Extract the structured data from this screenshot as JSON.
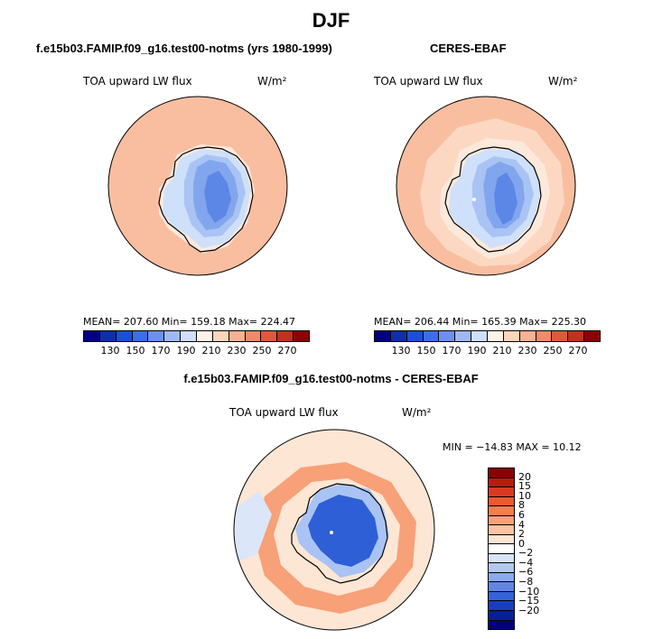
{
  "page": {
    "title": "DJF"
  },
  "panels": [
    {
      "title": "f.e15b03.FAMIP.f09_g16.test00-notms (yrs 1980-1999)",
      "variable": "TOA upward LW flux",
      "units": "W/m²",
      "stats": "MEAN= 207.60   Min= 159.18   Max= 224.47",
      "colorbar": {
        "ticks": [
          "130",
          "150",
          "170",
          "190",
          "210",
          "230",
          "250",
          "270"
        ],
        "colors": [
          "#00007f",
          "#0d2fa8",
          "#1a4fd8",
          "#3c6ee8",
          "#6d8ff0",
          "#9fb8f5",
          "#cfdefa",
          "#fff3e6",
          "#fdd4bc",
          "#f9b094",
          "#f08a68",
          "#dd5a3c",
          "#c2301e",
          "#8b0000"
        ]
      }
    },
    {
      "title": "CERES-EBAF",
      "variable": "TOA upward LW flux",
      "units": "W/m²",
      "stats": "MEAN= 206.44   Min= 165.39   Max= 225.30",
      "colorbar": {
        "ticks": [
          "130",
          "150",
          "170",
          "190",
          "210",
          "230",
          "250",
          "270"
        ],
        "colors": [
          "#00007f",
          "#0d2fa8",
          "#1a4fd8",
          "#3c6ee8",
          "#6d8ff0",
          "#9fb8f5",
          "#cfdefa",
          "#fff3e6",
          "#fdd4bc",
          "#f9b094",
          "#f08a68",
          "#dd5a3c",
          "#c2301e",
          "#8b0000"
        ]
      }
    },
    {
      "title": "f.e15b03.FAMIP.f09_g16.test00-notms - CERES-EBAF",
      "variable": "TOA upward LW flux",
      "units": "W/m²",
      "stats": "MIN = −14.83  MAX =   10.12",
      "colorbar": {
        "ticks": [
          "20",
          "15",
          "10",
          "8",
          "6",
          "4",
          "2",
          "0",
          "−2",
          "−4",
          "−6",
          "−8",
          "−10",
          "−15",
          "−20"
        ],
        "colors": [
          "#8b0000",
          "#b81c10",
          "#d93a20",
          "#ec5a30",
          "#f47e50",
          "#f8a078",
          "#fbc3a2",
          "#fde6d4",
          "#ffffff",
          "#d8e4f8",
          "#b2c8f2",
          "#8aaaec",
          "#5f86e4",
          "#3562d8",
          "#1a3cc0",
          "#0a1e9a",
          "#00007f"
        ]
      }
    }
  ],
  "map_colors": {
    "ocean_model": "#f9bea0",
    "ocean_model_light": "#fcd8c3",
    "coast_band": "#fde9dc",
    "ice_pale": "#cfe0fa",
    "ice_light": "#a9c4f4",
    "ice_mid": "#82a6ee",
    "ice_deep": "#5d87e6",
    "diff_bg": "#fde6d4",
    "diff_warm": "#f8a078",
    "diff_pale_blue": "#dbe6f8",
    "diff_blue": "#2f5fd6"
  }
}
